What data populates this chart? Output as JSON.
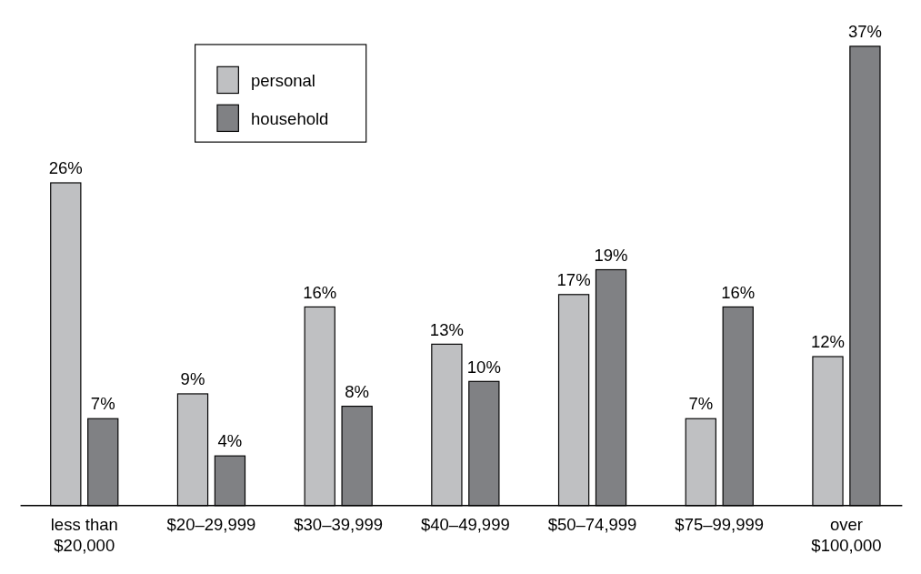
{
  "chart_data": {
    "type": "bar",
    "categories": [
      "less than\n$20,000",
      "$20–29,999",
      "$30–39,999",
      "$40–49,999",
      "$50–74,999",
      "$75–99,999",
      "over\n$100,000"
    ],
    "series": [
      {
        "name": "personal",
        "color": "#bfc0c2",
        "values": [
          26,
          9,
          16,
          13,
          17,
          7,
          12
        ],
        "value_labels": [
          "26%",
          "9%",
          "16%",
          "13%",
          "17%",
          "7%",
          "12%"
        ]
      },
      {
        "name": "household",
        "color": "#808184",
        "values": [
          7,
          4,
          8,
          10,
          19,
          16,
          37
        ],
        "value_labels": [
          "7%",
          "4%",
          "8%",
          "10%",
          "19%",
          "16%",
          "37%"
        ]
      }
    ],
    "legend": "top left"
  }
}
